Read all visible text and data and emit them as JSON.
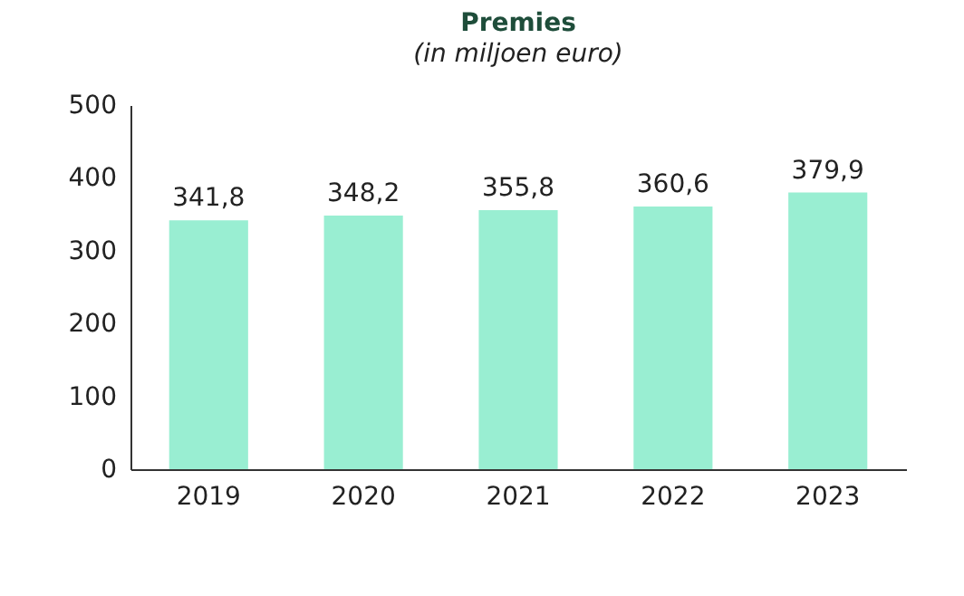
{
  "chart_data": {
    "type": "bar",
    "title": "Premies",
    "subtitle": "(in miljoen euro)",
    "categories": [
      "2019",
      "2020",
      "2021",
      "2022",
      "2023"
    ],
    "values": [
      341.8,
      348.2,
      355.8,
      360.6,
      379.9
    ],
    "value_labels": [
      "341,8",
      "348,2",
      "355,8",
      "360,6",
      "379,9"
    ],
    "color": "#99eed2",
    "ylim": [
      0,
      500
    ],
    "yticks": [
      0,
      100,
      200,
      300,
      400,
      500
    ],
    "grid": false
  }
}
